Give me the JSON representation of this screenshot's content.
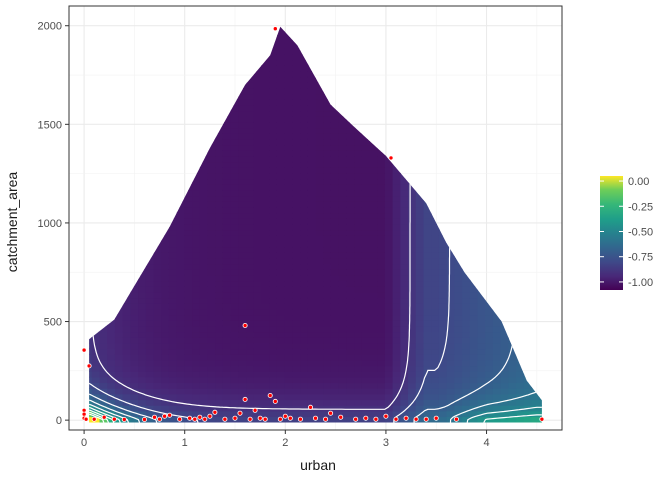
{
  "chart_data": {
    "type": "heatmap",
    "xlabel": "urban",
    "ylabel": "catchment_area",
    "xlim": [
      -0.15,
      4.75
    ],
    "ylim": [
      -50,
      2100
    ],
    "x_ticks": [
      0,
      1,
      2,
      3,
      4
    ],
    "x_tick_labels": [
      "0",
      "1",
      "2",
      "3",
      "4"
    ],
    "y_ticks": [
      0,
      500,
      1000,
      1500,
      2000
    ],
    "y_tick_labels": [
      "0",
      "500",
      "1000",
      "1500",
      "2000"
    ],
    "grid": true,
    "legend": {
      "position": "right",
      "colormap": "viridis",
      "range": [
        -1.08,
        0.05
      ],
      "tick_values": [
        0,
        -0.25,
        -0.5,
        -0.75,
        -1
      ],
      "tick_labels": [
        "0.00",
        "-0.25",
        "-0.50",
        "-0.75",
        "-1.00"
      ]
    },
    "region_outline": [
      [
        0.05,
        20
      ],
      [
        0.05,
        410
      ],
      [
        0.3,
        510
      ],
      [
        0.85,
        980
      ],
      [
        1.25,
        1380
      ],
      [
        1.6,
        1700
      ],
      [
        1.85,
        1850
      ],
      [
        1.95,
        1995
      ],
      [
        2.12,
        1900
      ],
      [
        2.45,
        1600
      ],
      [
        2.7,
        1480
      ],
      [
        3.0,
        1340
      ],
      [
        3.4,
        1100
      ],
      [
        3.6,
        900
      ],
      [
        3.78,
        750
      ],
      [
        4.15,
        500
      ],
      [
        4.4,
        200
      ],
      [
        4.55,
        100
      ],
      [
        4.55,
        20
      ]
    ],
    "contour_levels": [
      -0.9,
      -0.8,
      -0.7,
      -0.6,
      -0.5,
      -0.4,
      -0.3,
      -0.2,
      -0.1
    ],
    "points": [
      {
        "x": 0.0,
        "y": 355
      },
      {
        "x": 0.05,
        "y": 275
      },
      {
        "x": 0.0,
        "y": 50
      },
      {
        "x": 0.0,
        "y": 30
      },
      {
        "x": 0.0,
        "y": 10
      },
      {
        "x": 0.02,
        "y": 5
      },
      {
        "x": 0.1,
        "y": 5
      },
      {
        "x": 0.2,
        "y": 15
      },
      {
        "x": 0.3,
        "y": 5
      },
      {
        "x": 0.4,
        "y": 3
      },
      {
        "x": 0.6,
        "y": 3
      },
      {
        "x": 0.7,
        "y": 15
      },
      {
        "x": 0.75,
        "y": 5
      },
      {
        "x": 0.8,
        "y": 20
      },
      {
        "x": 0.85,
        "y": 25
      },
      {
        "x": 0.95,
        "y": 5
      },
      {
        "x": 1.05,
        "y": 10
      },
      {
        "x": 1.1,
        "y": 5
      },
      {
        "x": 1.15,
        "y": 15
      },
      {
        "x": 1.2,
        "y": 5
      },
      {
        "x": 1.25,
        "y": 20
      },
      {
        "x": 1.3,
        "y": 40
      },
      {
        "x": 1.4,
        "y": 5
      },
      {
        "x": 1.5,
        "y": 10
      },
      {
        "x": 1.55,
        "y": 35
      },
      {
        "x": 1.6,
        "y": 480
      },
      {
        "x": 1.6,
        "y": 105
      },
      {
        "x": 1.65,
        "y": 5
      },
      {
        "x": 1.7,
        "y": 50
      },
      {
        "x": 1.75,
        "y": 10
      },
      {
        "x": 1.8,
        "y": 5
      },
      {
        "x": 1.85,
        "y": 125
      },
      {
        "x": 1.9,
        "y": 95
      },
      {
        "x": 1.95,
        "y": 5
      },
      {
        "x": 2.0,
        "y": 20
      },
      {
        "x": 2.05,
        "y": 10
      },
      {
        "x": 2.15,
        "y": 5
      },
      {
        "x": 2.25,
        "y": 65
      },
      {
        "x": 2.3,
        "y": 10
      },
      {
        "x": 2.4,
        "y": 5
      },
      {
        "x": 2.45,
        "y": 35
      },
      {
        "x": 2.55,
        "y": 15
      },
      {
        "x": 2.7,
        "y": 5
      },
      {
        "x": 2.8,
        "y": 10
      },
      {
        "x": 2.9,
        "y": 5
      },
      {
        "x": 3.0,
        "y": 20
      },
      {
        "x": 3.05,
        "y": 1330
      },
      {
        "x": 3.1,
        "y": 5
      },
      {
        "x": 3.2,
        "y": 10
      },
      {
        "x": 3.3,
        "y": 5
      },
      {
        "x": 3.4,
        "y": 5
      },
      {
        "x": 3.5,
        "y": 10
      },
      {
        "x": 3.7,
        "y": 5
      },
      {
        "x": 4.55,
        "y": 5
      },
      {
        "x": 1.9,
        "y": 1985
      }
    ]
  }
}
